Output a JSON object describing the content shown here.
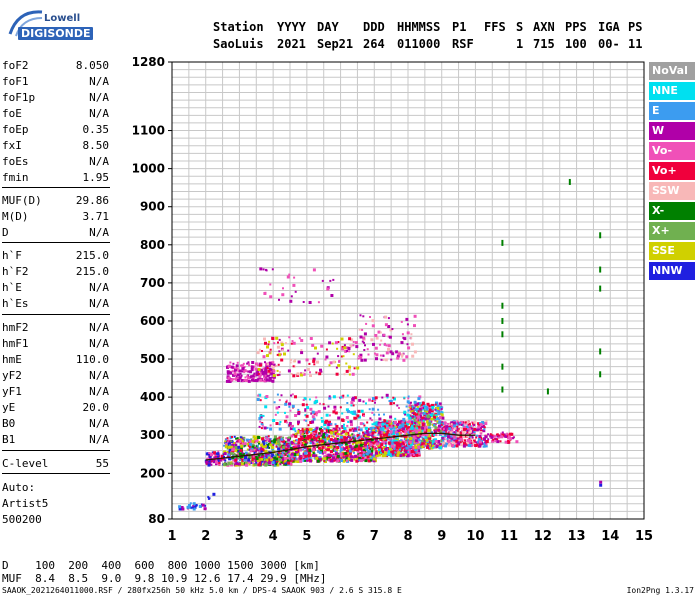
{
  "logo": {
    "brand": "Lowell",
    "product": "DIGISONDE",
    "icon": "digisonde-logo-icon",
    "accent": "#2d63b8"
  },
  "header": {
    "labels": [
      "Station",
      "YYYY",
      "DAY",
      "DDD",
      "HHMMSS",
      "P1",
      "FFS",
      "S",
      "AXN",
      "PPS",
      "IGA",
      "PS"
    ],
    "values": [
      "SaoLuis",
      "2021",
      "Sep21",
      "264",
      "011000",
      "RSF",
      "1",
      "715",
      "100",
      "00-",
      "11"
    ]
  },
  "params": [
    {
      "k": "foF2",
      "v": "8.050"
    },
    {
      "k": "foF1",
      "v": "N/A"
    },
    {
      "k": "foF1p",
      "v": "N/A"
    },
    {
      "k": "foE",
      "v": "N/A"
    },
    {
      "k": "foEp",
      "v": "0.35"
    },
    {
      "k": "fxI",
      "v": "8.50"
    },
    {
      "k": "foEs",
      "v": "N/A"
    },
    {
      "k": "fmin",
      "v": "1.95"
    },
    {
      "k": "MUF(D)",
      "v": "29.86"
    },
    {
      "k": "M(D)",
      "v": "3.71"
    },
    {
      "k": "D",
      "v": "N/A"
    },
    {
      "k": "h`F",
      "v": "215.0"
    },
    {
      "k": "h`F2",
      "v": "215.0"
    },
    {
      "k": "h`E",
      "v": "N/A"
    },
    {
      "k": "h`Es",
      "v": "N/A"
    },
    {
      "k": "hmF2",
      "v": "N/A"
    },
    {
      "k": "hmF1",
      "v": "N/A"
    },
    {
      "k": "hmE",
      "v": "110.0"
    },
    {
      "k": "yF2",
      "v": "N/A"
    },
    {
      "k": "yF1",
      "v": "N/A"
    },
    {
      "k": "yE",
      "v": "20.0"
    },
    {
      "k": "B0",
      "v": "N/A"
    },
    {
      "k": "B1",
      "v": "N/A"
    },
    {
      "k": "C-level",
      "v": "55"
    }
  ],
  "autoscale": {
    "line1": "Auto:",
    "line2": "Artist5",
    "line3": "500200"
  },
  "legend": [
    {
      "label": "NoVal",
      "color": "#a0a0a0"
    },
    {
      "label": "NNE",
      "color": "#00e0f0"
    },
    {
      "label": "E",
      "color": "#3c9cf0"
    },
    {
      "label": "W",
      "color": "#b000a8"
    },
    {
      "label": "Vo-",
      "color": "#f050b8"
    },
    {
      "label": "Vo+",
      "color": "#f0003c"
    },
    {
      "label": "SSW",
      "color": "#f8b8b8"
    },
    {
      "label": "X-",
      "color": "#008000"
    },
    {
      "label": "X+",
      "color": "#70b050"
    },
    {
      "label": "SSE",
      "color": "#d0d000"
    },
    {
      "label": "NNW",
      "color": "#2020e0"
    }
  ],
  "chart_data": {
    "type": "scatter",
    "title": "",
    "xlabel": "",
    "ylabel": "",
    "xlim": [
      1,
      15
    ],
    "ylim": [
      80,
      1280
    ],
    "x_ticks": [
      1,
      2,
      3,
      4,
      5,
      6,
      7,
      8,
      9,
      10,
      11,
      12,
      13,
      14,
      15
    ],
    "y_ticks": [
      80,
      200,
      300,
      400,
      500,
      600,
      700,
      800,
      900,
      1000,
      1100,
      1280
    ],
    "grid": true,
    "legend_position": "right",
    "trace": {
      "name": "",
      "color": "#2a1a00",
      "x": [
        2.0,
        2.5,
        3.0,
        3.5,
        4.0,
        4.5,
        5.0,
        5.5,
        6.0,
        6.5,
        7.0,
        7.5,
        8.0,
        8.5,
        9.0,
        9.5,
        10.0
      ],
      "y": [
        235,
        240,
        245,
        250,
        255,
        262,
        270,
        275,
        280,
        285,
        290,
        295,
        300,
        305,
        305,
        300,
        300
      ]
    },
    "clusters": [
      {
        "x": [
          1.95,
          2.5
        ],
        "y": [
          225,
          260
        ],
        "n": 70,
        "colors": [
          "#f0003c",
          "#2020e0",
          "#b000a8",
          "#f050b8"
        ]
      },
      {
        "x": [
          2.5,
          4.5
        ],
        "y": [
          225,
          300
        ],
        "n": 600,
        "colors": [
          "#f0003c",
          "#f050b8",
          "#b000a8",
          "#2020e0",
          "#008000",
          "#70b050",
          "#3c9cf0",
          "#d0d000"
        ]
      },
      {
        "x": [
          4.5,
          7.0
        ],
        "y": [
          235,
          320
        ],
        "n": 800,
        "colors": [
          "#f0003c",
          "#f050b8",
          "#b000a8",
          "#f0003c",
          "#3c9cf0",
          "#008000",
          "#d0d000"
        ]
      },
      {
        "x": [
          7.0,
          8.3
        ],
        "y": [
          250,
          340
        ],
        "n": 600,
        "colors": [
          "#f0003c",
          "#f050b8",
          "#b000a8",
          "#f0003c",
          "#3c9cf0",
          "#00e0f0",
          "#d0d000"
        ]
      },
      {
        "x": [
          8.0,
          9.0
        ],
        "y": [
          270,
          390
        ],
        "n": 450,
        "colors": [
          "#f0003c",
          "#f050b8",
          "#b000a8",
          "#3c9cf0",
          "#00e0f0",
          "#70b050",
          "#d0d000"
        ]
      },
      {
        "x": [
          9.0,
          10.3
        ],
        "y": [
          275,
          340
        ],
        "n": 350,
        "colors": [
          "#f0003c",
          "#f050b8",
          "#b000a8",
          "#3c9cf0",
          "#f8b8b8"
        ]
      },
      {
        "x": [
          10.3,
          11.2
        ],
        "y": [
          285,
          310
        ],
        "n": 50,
        "colors": [
          "#f050b8",
          "#f0003c",
          "#b000a8"
        ]
      },
      {
        "x": [
          3.5,
          8.5
        ],
        "y": [
          320,
          410
        ],
        "n": 280,
        "colors": [
          "#b000a8",
          "#f050b8",
          "#f0003c",
          "#3c9cf0",
          "#00e0f0"
        ]
      },
      {
        "x": [
          2.6,
          4.0
        ],
        "y": [
          445,
          495
        ],
        "n": 180,
        "colors": [
          "#b000a8",
          "#b000a8",
          "#f050b8"
        ]
      },
      {
        "x": [
          3.5,
          6.5
        ],
        "y": [
          460,
          560
        ],
        "n": 150,
        "colors": [
          "#f050b8",
          "#b000a8",
          "#f8b8b8",
          "#f0003c",
          "#d0d000"
        ]
      },
      {
        "x": [
          6.5,
          8.2
        ],
        "y": [
          500,
          620
        ],
        "n": 90,
        "colors": [
          "#f050b8",
          "#b000a8",
          "#f8b8b8"
        ]
      },
      {
        "x": [
          3.4,
          5.8
        ],
        "y": [
          650,
          760
        ],
        "n": 30,
        "colors": [
          "#b000a8",
          "#f050b8"
        ]
      },
      {
        "x": [
          1.15,
          2.0
        ],
        "y": [
          110,
          125
        ],
        "n": 30,
        "colors": [
          "#2020e0",
          "#3c9cf0",
          "#b000a8"
        ]
      },
      {
        "x": [
          2.0,
          2.2
        ],
        "y": [
          135,
          150
        ],
        "n": 4,
        "colors": [
          "#2020e0"
        ]
      }
    ],
    "x_mode_ticks": [
      {
        "x": 10.8,
        "y": [
          805,
          640,
          600,
          565,
          480,
          420
        ]
      },
      {
        "x": 13.7,
        "y": [
          825,
          735,
          685,
          520,
          460
        ]
      },
      {
        "x": 12.15,
        "y": [
          415
        ]
      },
      {
        "x": 12.8,
        "y": [
          965
        ]
      }
    ],
    "hf_marks": [
      {
        "x": 13.7,
        "y": 178,
        "color": "#b000a8"
      },
      {
        "x": 13.7,
        "y": 170,
        "color": "#2020e0"
      }
    ]
  },
  "footer": {
    "d_row": "D    100  200  400  600  800 1000 1500 3000 [km]",
    "muf_row": "MUF  8.4  8.5  9.0  9.8 10.9 12.6 17.4 29.9 [MHz]",
    "file_info": "SAAOK_2021264011000.RSF / 280fx256h 50 kHz 5.0 km / DPS-4 SAAOK 903 / 2.6 S 315.8 E",
    "version": "Ion2Png 1.3.17"
  }
}
